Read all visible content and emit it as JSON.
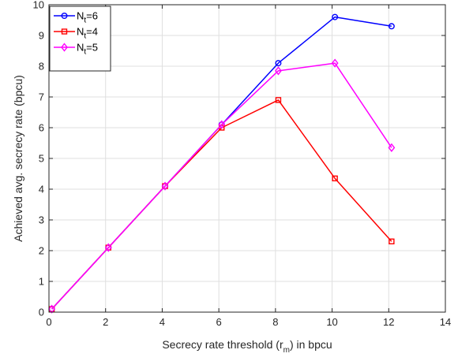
{
  "chart_data": {
    "type": "line",
    "xlabel_main": "Secrecy rate threshold (r",
    "xlabel_sub": "m",
    "xlabel_tail": ") in bpcu",
    "ylabel": "Achieved avg. secrecy rate (bpcu)",
    "xlim": [
      0,
      14
    ],
    "ylim": [
      0,
      10
    ],
    "xticks": [
      "0",
      "2",
      "4",
      "6",
      "8",
      "10",
      "12",
      "14"
    ],
    "yticks": [
      "0",
      "1",
      "2",
      "3",
      "4",
      "5",
      "6",
      "7",
      "8",
      "9",
      "10"
    ],
    "grid": true,
    "legend_position": "top-left",
    "series": [
      {
        "name_main": "N",
        "name_sub": "t",
        "name_tail": "=6",
        "color": "#0000ff",
        "marker": "circle",
        "x": [
          0.1,
          2.1,
          4.1,
          6.1,
          8.1,
          10.1,
          12.1
        ],
        "y": [
          0.1,
          2.1,
          4.1,
          6.1,
          8.1,
          9.6,
          9.3
        ]
      },
      {
        "name_main": "N",
        "name_sub": "t",
        "name_tail": "=4",
        "color": "#ff0000",
        "marker": "square",
        "x": [
          0.1,
          2.1,
          4.1,
          6.1,
          8.1,
          10.1,
          12.1
        ],
        "y": [
          0.1,
          2.1,
          4.1,
          6.0,
          6.9,
          4.35,
          2.3
        ]
      },
      {
        "name_main": "N",
        "name_sub": "t",
        "name_tail": "=5",
        "color": "#ff00ff",
        "marker": "diamond",
        "x": [
          0.1,
          2.1,
          4.1,
          6.1,
          8.1,
          10.1,
          12.1
        ],
        "y": [
          0.1,
          2.1,
          4.1,
          6.1,
          7.85,
          8.1,
          5.35
        ]
      }
    ]
  }
}
